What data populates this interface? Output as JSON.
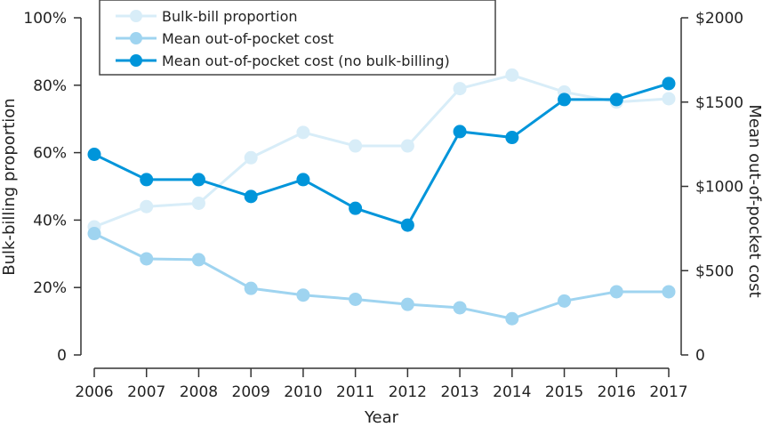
{
  "chart_data": {
    "type": "line",
    "title": "",
    "xlabel": "Year",
    "ylabel_left": "Bulk-billing proportion",
    "ylabel_right": "Mean out-of-pocket cost",
    "x": [
      "2006",
      "2007",
      "2008",
      "2009",
      "2010",
      "2011",
      "2012",
      "2013",
      "2014",
      "2015",
      "2016",
      "2017"
    ],
    "yleft_ticks": [
      "0",
      "20%",
      "40%",
      "60%",
      "80%",
      "100%"
    ],
    "yleft_range": [
      0,
      100
    ],
    "yright_ticks": [
      "0",
      "$500",
      "$1000",
      "$1500",
      "$2000"
    ],
    "yright_range": [
      0,
      2000
    ],
    "grid": false,
    "legend_position": "top",
    "series": [
      {
        "name": "Bulk-bill proportion",
        "axis": "left",
        "unit": "%",
        "color": "#d8edf8",
        "values": [
          38,
          44,
          45,
          58.5,
          66,
          62,
          62,
          79,
          83,
          78,
          75,
          76
        ]
      },
      {
        "name": "Mean out-of-pocket cost",
        "axis": "right",
        "unit": "$",
        "color": "#9fd4f0",
        "values": [
          720,
          570,
          565,
          395,
          355,
          330,
          300,
          280,
          215,
          320,
          375,
          375
        ]
      },
      {
        "name": "Mean out-of-pocket cost (no bulk-billing)",
        "axis": "right",
        "unit": "$",
        "color": "#0095da",
        "values": [
          1190,
          1040,
          1040,
          940,
          1040,
          870,
          770,
          1325,
          1290,
          1515,
          1515,
          1610
        ]
      }
    ]
  }
}
